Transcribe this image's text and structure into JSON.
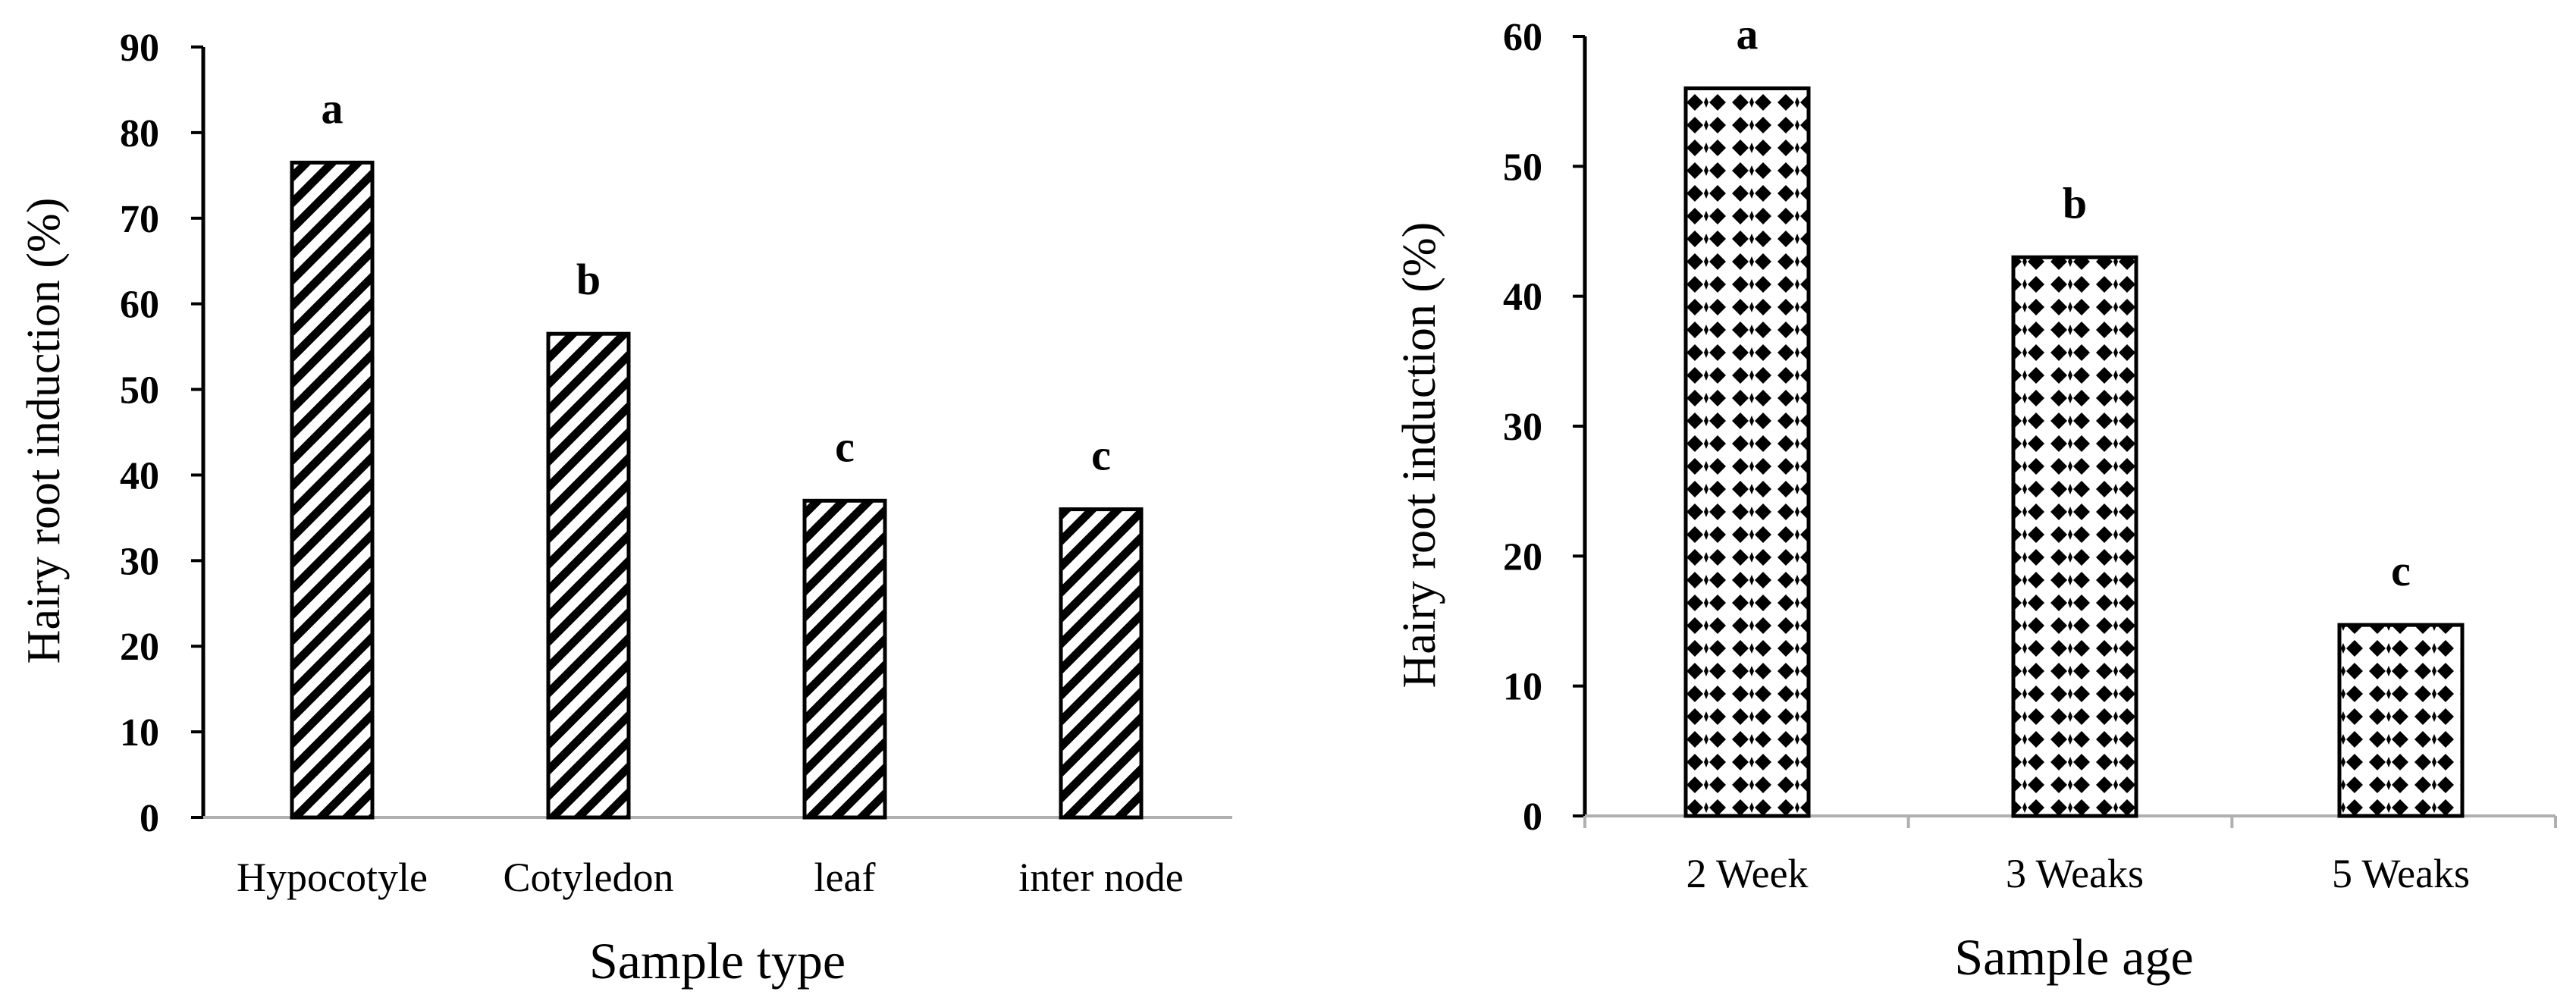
{
  "chart_data": [
    {
      "type": "bar",
      "title": "",
      "xlabel": "Sample type",
      "ylabel": "Hairy root induction (%)",
      "ylim": [
        0,
        90
      ],
      "yticks": [
        "0",
        "10",
        "20",
        "30",
        "40",
        "50",
        "60",
        "70",
        "80",
        "90"
      ],
      "categories": [
        "Hypocotyle",
        "Cotyledon",
        "leaf",
        "inter node"
      ],
      "values": [
        76.5,
        56.5,
        37,
        36
      ],
      "significance": [
        "a",
        "b",
        "c",
        "c"
      ],
      "pattern": "diagonal-hatch",
      "grid": false
    },
    {
      "type": "bar",
      "title": "",
      "xlabel": "Sample  age",
      "ylabel": "Hairy root induction (%)",
      "ylim": [
        0,
        60
      ],
      "yticks": [
        "0",
        "10",
        "20",
        "30",
        "40",
        "50",
        "60"
      ],
      "categories": [
        "2 Week",
        "3 Weaks",
        "5 Weaks"
      ],
      "values": [
        56,
        43,
        14.7
      ],
      "significance": [
        "a",
        "b",
        "c"
      ],
      "pattern": "diamond-dots",
      "grid": false
    }
  ]
}
